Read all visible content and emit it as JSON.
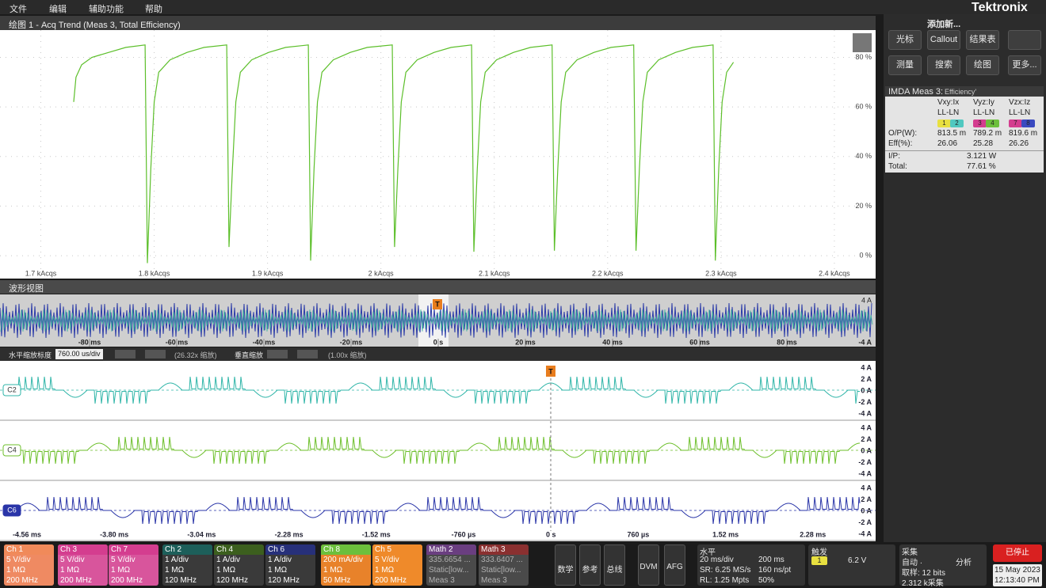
{
  "menu": [
    "文件",
    "编辑",
    "辅助功能",
    "帮助"
  ],
  "brand": "Tektronix",
  "chart_data": {
    "type": "line",
    "title": "绘图 1 - Acq Trend (Meas 3, Total Efficiency)",
    "color": "#5cbf2a",
    "x": [
      1729,
      1731,
      1736,
      1745,
      1760,
      1775,
      1792,
      1794,
      1797,
      1800,
      1804,
      1814,
      1829,
      1844,
      1864,
      1866,
      1869,
      1872,
      1876,
      1886,
      1901,
      1916,
      1936,
      1938,
      1941,
      1944,
      1948,
      1958,
      1973,
      1988,
      2010,
      2012,
      2015,
      2018,
      2022,
      2032,
      2047,
      2062,
      2080,
      2082,
      2085,
      2088,
      2092,
      2102,
      2117,
      2132,
      2151,
      2153,
      2156,
      2159,
      2163,
      2173,
      2188,
      2203,
      2223,
      2225,
      2228,
      2231,
      2235,
      2245,
      2260,
      2275,
      2293,
      2295,
      2298,
      2301,
      2305,
      2311
    ],
    "values": [
      62,
      72,
      77,
      80,
      82,
      84,
      85,
      -3,
      35,
      62,
      74,
      79,
      82,
      84,
      85,
      3.5,
      35,
      62,
      74,
      79,
      82,
      84,
      85,
      -2,
      35,
      62,
      74,
      79,
      82,
      84,
      85,
      3.5,
      35,
      62,
      74,
      79,
      82,
      84,
      85,
      1.6,
      35,
      62,
      74,
      79,
      82,
      84,
      85,
      2,
      35,
      62,
      74,
      79,
      82,
      84,
      85,
      2,
      35,
      62,
      74,
      79,
      82,
      84,
      85,
      -2,
      35,
      62,
      74,
      78
    ],
    "xlim": [
      1664,
      2435
    ],
    "ylim": [
      -7,
      91
    ],
    "xticks": [
      {
        "value": 1700,
        "label": "1.7 kAcqs"
      },
      {
        "value": 1800,
        "label": "1.8 kAcqs"
      },
      {
        "value": 1900,
        "label": "1.9 kAcqs"
      },
      {
        "value": 2000,
        "label": "2 kAcqs"
      },
      {
        "value": 2100,
        "label": "2.1 kAcqs"
      },
      {
        "value": 2200,
        "label": "2.2 kAcqs"
      },
      {
        "value": 2300,
        "label": "2.3 kAcqs"
      },
      {
        "value": 2400,
        "label": "2.4 kAcqs"
      }
    ],
    "yticks": [
      {
        "value": 0,
        "label": "0 %"
      },
      {
        "value": 20,
        "label": "20 %"
      },
      {
        "value": 40,
        "label": "40 %"
      },
      {
        "value": 60,
        "label": "60 %"
      },
      {
        "value": 80,
        "label": "80 %"
      }
    ],
    "grid": true
  },
  "waveform": {
    "title": "波形视图",
    "trigger_marker": "T",
    "overview_xticks": [
      "-80 ms",
      "-60 ms",
      "-40 ms",
      "-20 ms",
      "0 s",
      "20 ms",
      "40 ms",
      "60 ms",
      "80 ms"
    ],
    "overview_ylabels": [
      "4 A",
      "-4 A"
    ],
    "zoom_bar": {
      "h_label": "水平缩放标度",
      "h_scale": "760.00 us/div",
      "h_factor": "(26.32x 缩放)",
      "v_label": "垂直缩放",
      "v_factor": "(1.00x 缩放)"
    },
    "zoom_xticks": [
      "-4.56 ms",
      "-3.80 ms",
      "-3.04 ms",
      "-2.28 ms",
      "-1.52 ms",
      "-760 µs",
      "0 s",
      "760 µs",
      "1.52 ms",
      "2.28 ms"
    ],
    "panes": [
      {
        "badge": "C2",
        "color": "#2fb5a8",
        "ylabels": [
          "4 A",
          "2 A",
          "0 A",
          "-2 A",
          "-4 A"
        ]
      },
      {
        "badge": "C4",
        "color": "#6cbf2a",
        "ylabels": [
          "4 A",
          "2 A",
          "0 A",
          "-2 A",
          "-4 A"
        ]
      },
      {
        "badge": "C6",
        "color": "#2a35a8",
        "ylabels": [
          "4 A",
          "2 A",
          "0 A",
          "-2 A",
          "-4 A"
        ]
      }
    ]
  },
  "panel": {
    "title": "添加新...",
    "buttons": [
      "光标",
      "Callout",
      "结果表",
      "测量",
      "搜索",
      "绘图",
      "更多..."
    ]
  },
  "results": {
    "title": "IMDA Meas 3:",
    "subtitle": "Efficiency'",
    "columns": [
      {
        "name": "Vxy:Ix",
        "mode": "LL-LN",
        "chips": [
          "1",
          "2"
        ],
        "chip_colors": [
          "#e8e040",
          "#50c8c0"
        ]
      },
      {
        "name": "Vyz:Iy",
        "mode": "LL-LN",
        "chips": [
          "3",
          "4"
        ],
        "chip_colors": [
          "#d43d8f",
          "#6cbf3c"
        ]
      },
      {
        "name": "Vzx:Iz",
        "mode": "LL-LN",
        "chips": [
          "7",
          "8"
        ],
        "chip_colors": [
          "#d43d8f",
          "#3a4ac0"
        ]
      }
    ],
    "rows": [
      {
        "label": "O/P(W):",
        "cells": [
          "813.5 m",
          "789.2 m",
          "819.6 m"
        ]
      },
      {
        "label": "Eff(%):",
        "cells": [
          "26.06",
          "25.28",
          "26.26"
        ]
      }
    ],
    "totals": [
      {
        "label": "I/P:",
        "value": "3.121 W"
      },
      {
        "label": "Total:",
        "value": "77.61 %"
      }
    ]
  },
  "channels": [
    {
      "name": "Ch 1",
      "lines": [
        "5 V/div",
        "1 MΩ",
        "200 MHz"
      ],
      "header": "#f08a5a",
      "body": "#ef8a62",
      "text": "#ffffff"
    },
    {
      "name": "Ch 3",
      "lines": [
        "5 V/div",
        "1 MΩ",
        "200 MHz"
      ],
      "header": "#d43d8f",
      "body": "#d8559c",
      "text": "#ffffff"
    },
    {
      "name": "Ch 7",
      "lines": [
        "5 V/div",
        "1 MΩ",
        "200 MHz"
      ],
      "header": "#d43d8f",
      "body": "#d8559c",
      "text": "#ffffff"
    },
    {
      "name": "Ch 2",
      "lines": [
        "1 A/div",
        "1 MΩ",
        "120 MHz"
      ],
      "header": "#1d5f5a",
      "body": "#3a3a3a",
      "text": "#ffffff"
    },
    {
      "name": "Ch 4",
      "lines": [
        "1 A/div",
        "1 MΩ",
        "120 MHz"
      ],
      "header": "#3c5f1e",
      "body": "#3a3a3a",
      "text": "#ffffff"
    },
    {
      "name": "Ch 6",
      "lines": [
        "1 A/div",
        "1 MΩ",
        "120 MHz"
      ],
      "header": "#27307a",
      "body": "#3a3a3a",
      "text": "#ffffff"
    },
    {
      "name": "Ch 8",
      "lines": [
        "200 mA/div",
        "1 MΩ",
        "50 MHz"
      ],
      "header": "#6cbf3c",
      "body": "#e8822a",
      "text": "#ffffff"
    },
    {
      "name": "Ch 5",
      "lines": [
        "5 V/div",
        "1 MΩ",
        "200 MHz"
      ],
      "header": "#ef8a2a",
      "body": "#ef8a2a",
      "text": "#ffffff"
    },
    {
      "name": "Math 2",
      "lines": [
        "335.6654 ...",
        "Static[low...",
        "Meas 3"
      ],
      "header": "#6a3e80",
      "body": "#4a4a4a",
      "text": "#b0b0b0"
    },
    {
      "name": "Math 3",
      "lines": [
        "333.6407 ...",
        "Static[low...",
        "Meas 3"
      ],
      "header": "#8a3030",
      "body": "#4a4a4a",
      "text": "#b0b0b0"
    }
  ],
  "tools": [
    "数学",
    "参考",
    "总线",
    "DVM",
    "AFG"
  ],
  "horizontal": {
    "title": "水平",
    "rows": [
      [
        "20 ms/div",
        "200 ms"
      ],
      [
        "SR: 6.25 MS/s",
        "160 ns/pt"
      ],
      [
        "RL: 1.25 Mpts",
        "50%"
      ]
    ]
  },
  "trigger": {
    "title": "触发",
    "source": "1",
    "level": "6.2 V"
  },
  "acquire": {
    "title": "采集",
    "rows": [
      [
        "自动 ·",
        "分析"
      ],
      [
        "取样: 12 bits"
      ],
      [
        "2.312 k采集"
      ]
    ]
  },
  "status": {
    "state": "已停止",
    "date": "15 May 2023",
    "time": "12:13:40 PM"
  }
}
